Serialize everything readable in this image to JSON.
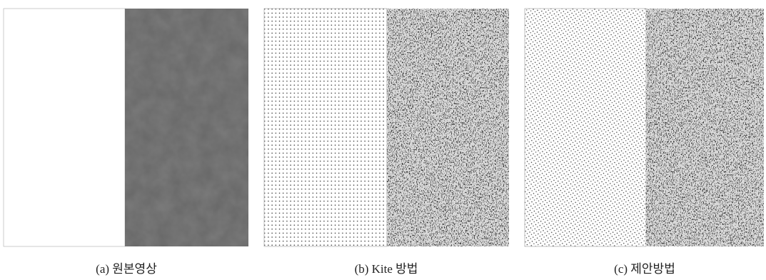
{
  "figure": {
    "panels": [
      {
        "caption": "(a) 원본영상"
      },
      {
        "caption": "(b) Kite 방법"
      },
      {
        "caption": "(c) 제안방법"
      }
    ]
  }
}
